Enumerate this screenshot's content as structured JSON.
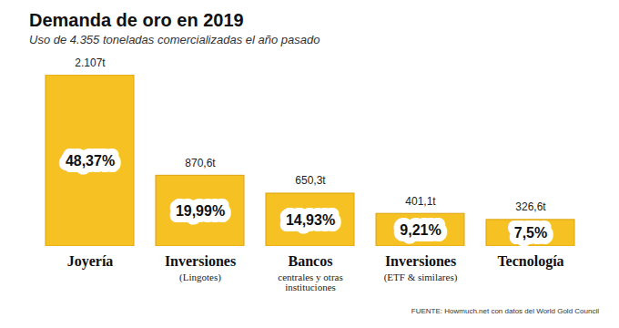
{
  "chart_data": {
    "type": "bar",
    "title": "Demanda de oro en 2019",
    "subtitle": "Uso de 4.355 toneladas comercializadas el año pasado",
    "source": "FUENTE: Howmuch.net con datos del World Gold Council",
    "categories": [
      "Joyería",
      "Inversiones",
      "Bancos",
      "Inversiones",
      "Tecnología"
    ],
    "category_notes": [
      null,
      "(Lingotes)",
      "centrales y otras\ninstituciones",
      "(ETF & similares)",
      null
    ],
    "values": [
      2107,
      870.6,
      650.3,
      401.1,
      326.6
    ],
    "value_labels": [
      "2.107t",
      "870,6t",
      "650,3t",
      "401,1t",
      "326,6t"
    ],
    "shares": [
      48.37,
      19.99,
      14.93,
      9.21,
      7.5
    ],
    "share_labels": [
      "48,37%",
      "19,99%",
      "14,93%",
      "9,21%",
      "7,5%"
    ],
    "color": "#f5c123",
    "ylim": [
      0,
      2107
    ],
    "data_labels": true,
    "tick_labels": false,
    "grid": false
  }
}
